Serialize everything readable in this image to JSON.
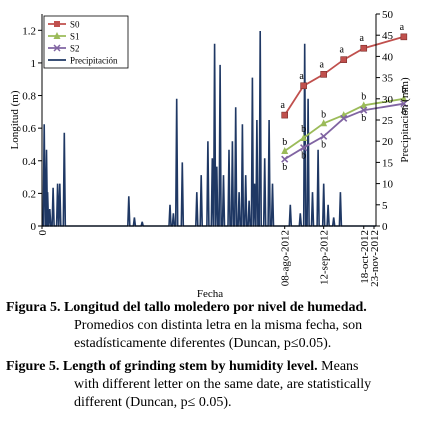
{
  "chart_data": {
    "type": "line",
    "xlabel": "Fecha",
    "ylabel_left": "Longitud (m)",
    "ylabel_right": "Precipitación (mm)",
    "left_ylim": [
      0,
      1.3
    ],
    "right_ylim": [
      0,
      50
    ],
    "left_ticks": [
      "0",
      "0.2",
      "0.4",
      "0.6",
      "0.8",
      "1",
      "1.2"
    ],
    "right_ticks": [
      "0",
      "5",
      "10",
      "15",
      "20",
      "25",
      "30",
      "35",
      "40",
      "45",
      "50"
    ],
    "x_tick_labels": [
      "0",
      "08-ago-2012",
      "12-sep-2012",
      "18-oct-2012",
      "23-nov-2012"
    ],
    "x_range_days": [
      0,
      300
    ],
    "x_tick_days": [
      0,
      218,
      253,
      289,
      325
    ],
    "legend_position": "top-left",
    "series": [
      {
        "name": "S0",
        "color": "#c0504d",
        "marker": "square",
        "x": [
          218,
          235,
          253,
          271,
          289,
          325
        ],
        "y": [
          0.68,
          0.86,
          0.93,
          1.02,
          1.09,
          1.16
        ],
        "labels": [
          "a",
          "a",
          "a",
          "a",
          "a",
          "a"
        ]
      },
      {
        "name": "S1",
        "color": "#9bbb59",
        "marker": "triangle",
        "x": [
          218,
          235,
          253,
          271,
          289,
          325
        ],
        "y": [
          0.46,
          0.54,
          0.63,
          0.68,
          0.74,
          0.78
        ],
        "labels": [
          "b",
          "b",
          "b",
          "",
          "b",
          "b"
        ]
      },
      {
        "name": "S2",
        "color": "#8064a2",
        "marker": "x",
        "x": [
          218,
          235,
          253,
          271,
          289,
          325
        ],
        "y": [
          0.41,
          0.48,
          0.55,
          0.66,
          0.71,
          0.75
        ],
        "labels": [
          "b",
          "b",
          "b",
          "",
          "b",
          "b"
        ]
      },
      {
        "name": "Precipitación",
        "color": "#1f3864",
        "axis": "right",
        "events": [
          [
            2,
            24
          ],
          [
            4,
            18
          ],
          [
            5,
            8
          ],
          [
            7,
            4
          ],
          [
            10,
            9
          ],
          [
            14,
            10
          ],
          [
            16,
            10
          ],
          [
            20,
            22
          ],
          [
            78,
            7
          ],
          [
            83,
            2
          ],
          [
            90,
            1
          ],
          [
            115,
            5
          ],
          [
            118,
            3
          ],
          [
            121,
            30
          ],
          [
            126,
            15
          ],
          [
            139,
            8
          ],
          [
            143,
            12
          ],
          [
            149,
            20
          ],
          [
            153,
            16
          ],
          [
            155,
            43
          ],
          [
            157,
            14
          ],
          [
            160,
            38
          ],
          [
            163,
            12
          ],
          [
            168,
            18
          ],
          [
            171,
            20
          ],
          [
            174,
            28
          ],
          [
            177,
            8
          ],
          [
            180,
            24
          ],
          [
            183,
            12
          ],
          [
            186,
            6
          ],
          [
            189,
            35
          ],
          [
            191,
            10
          ],
          [
            193,
            25
          ],
          [
            196,
            46
          ],
          [
            200,
            16
          ],
          [
            204,
            25
          ],
          [
            207,
            10
          ],
          [
            223,
            5
          ],
          [
            232,
            3
          ],
          [
            236,
            43
          ],
          [
            239,
            30
          ],
          [
            243,
            8
          ],
          [
            248,
            18
          ],
          [
            253,
            10
          ],
          [
            257,
            5
          ],
          [
            262,
            2
          ],
          [
            268,
            8
          ]
        ]
      }
    ]
  },
  "caption_es": {
    "lead": "Figura 5. Longitud del tallo moledero por nivel de humedad.",
    "rest": "Promedios con distinta letra en la misma fecha, son estadísticamente diferentes (Duncan, p≤0.05)."
  },
  "caption_en": {
    "lead": "Figure 5. Length of grinding stem by humidity level.",
    "lead_rest": "Means",
    "rest": "with different letter on the same date, are statistically different (Duncan, p≤ 0.05)."
  }
}
